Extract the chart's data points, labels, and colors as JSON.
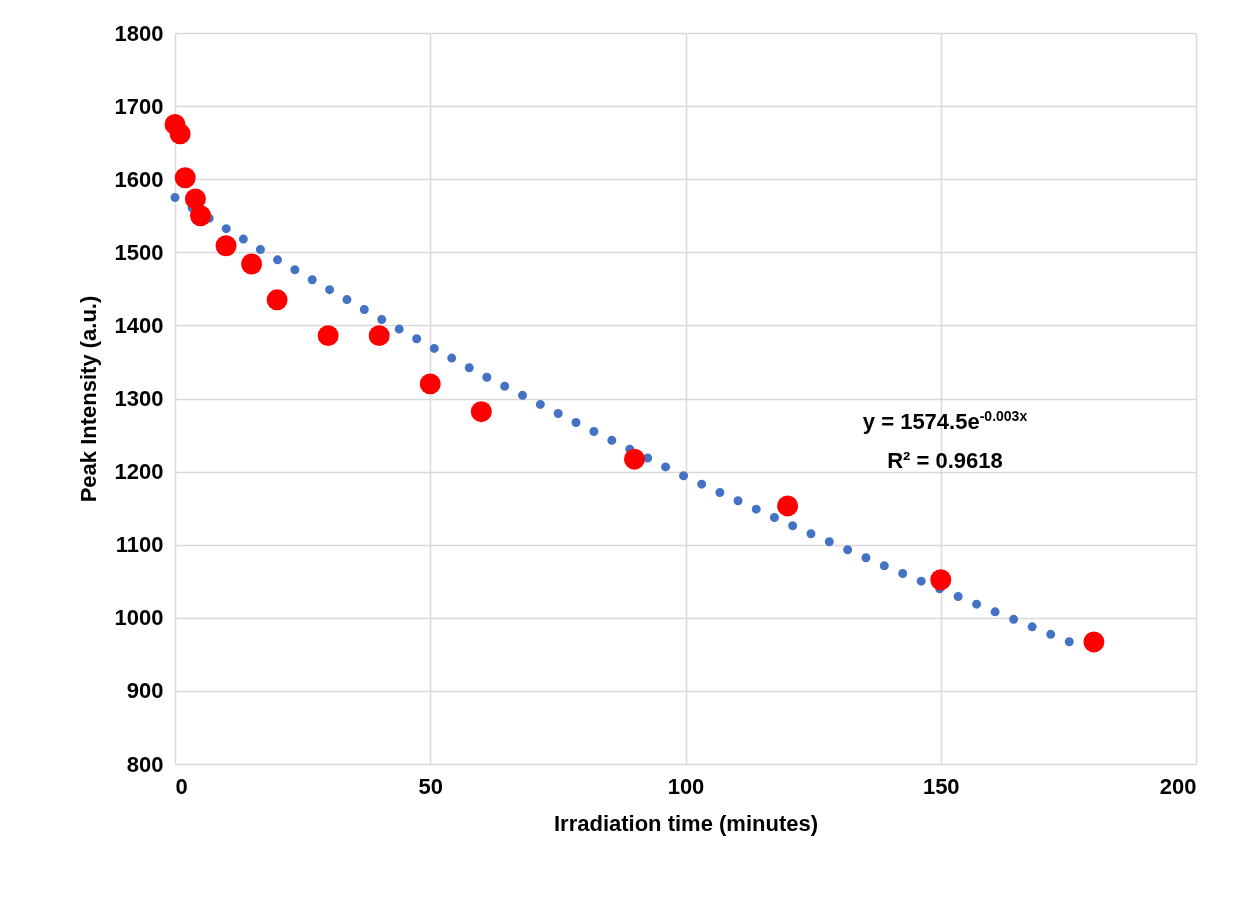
{
  "chart_data": {
    "type": "scatter",
    "xlabel": "Irradiation time (minutes)",
    "ylabel": "Peak Intensity (a.u.)",
    "xlim": [
      0,
      200
    ],
    "xticks": [
      0,
      50,
      100,
      150,
      200
    ],
    "ylim": [
      800,
      1800
    ],
    "yticks": [
      800,
      900,
      1000,
      1100,
      1200,
      1300,
      1400,
      1500,
      1600,
      1700,
      1800
    ],
    "grid": true,
    "annotations": [
      "y = 1574.5e$^{-0.003x}$",
      "R² = 0.9618"
    ],
    "series": [
      {
        "type": "scatter",
        "color": "#ff0000",
        "marker": "circle",
        "x": [
          0,
          1,
          2,
          4,
          5,
          10,
          15,
          20,
          30,
          40,
          50,
          60,
          90,
          120,
          150,
          180
        ],
        "values": [
          1675,
          1662,
          1602,
          1573,
          1550,
          1509,
          1484,
          1435,
          1386,
          1386,
          1320,
          1282,
          1217,
          1153,
          1052,
          967
        ]
      },
      {
        "type": "line",
        "color": "#4472c4",
        "line_style": "dotted",
        "marker": "none",
        "x": [
          0,
          20,
          40,
          60,
          80,
          100,
          120,
          140,
          160,
          177
        ],
        "values": [
          1575,
          1490,
          1410,
          1333,
          1262,
          1193,
          1129,
          1068,
          1010,
          962
        ]
      }
    ]
  }
}
